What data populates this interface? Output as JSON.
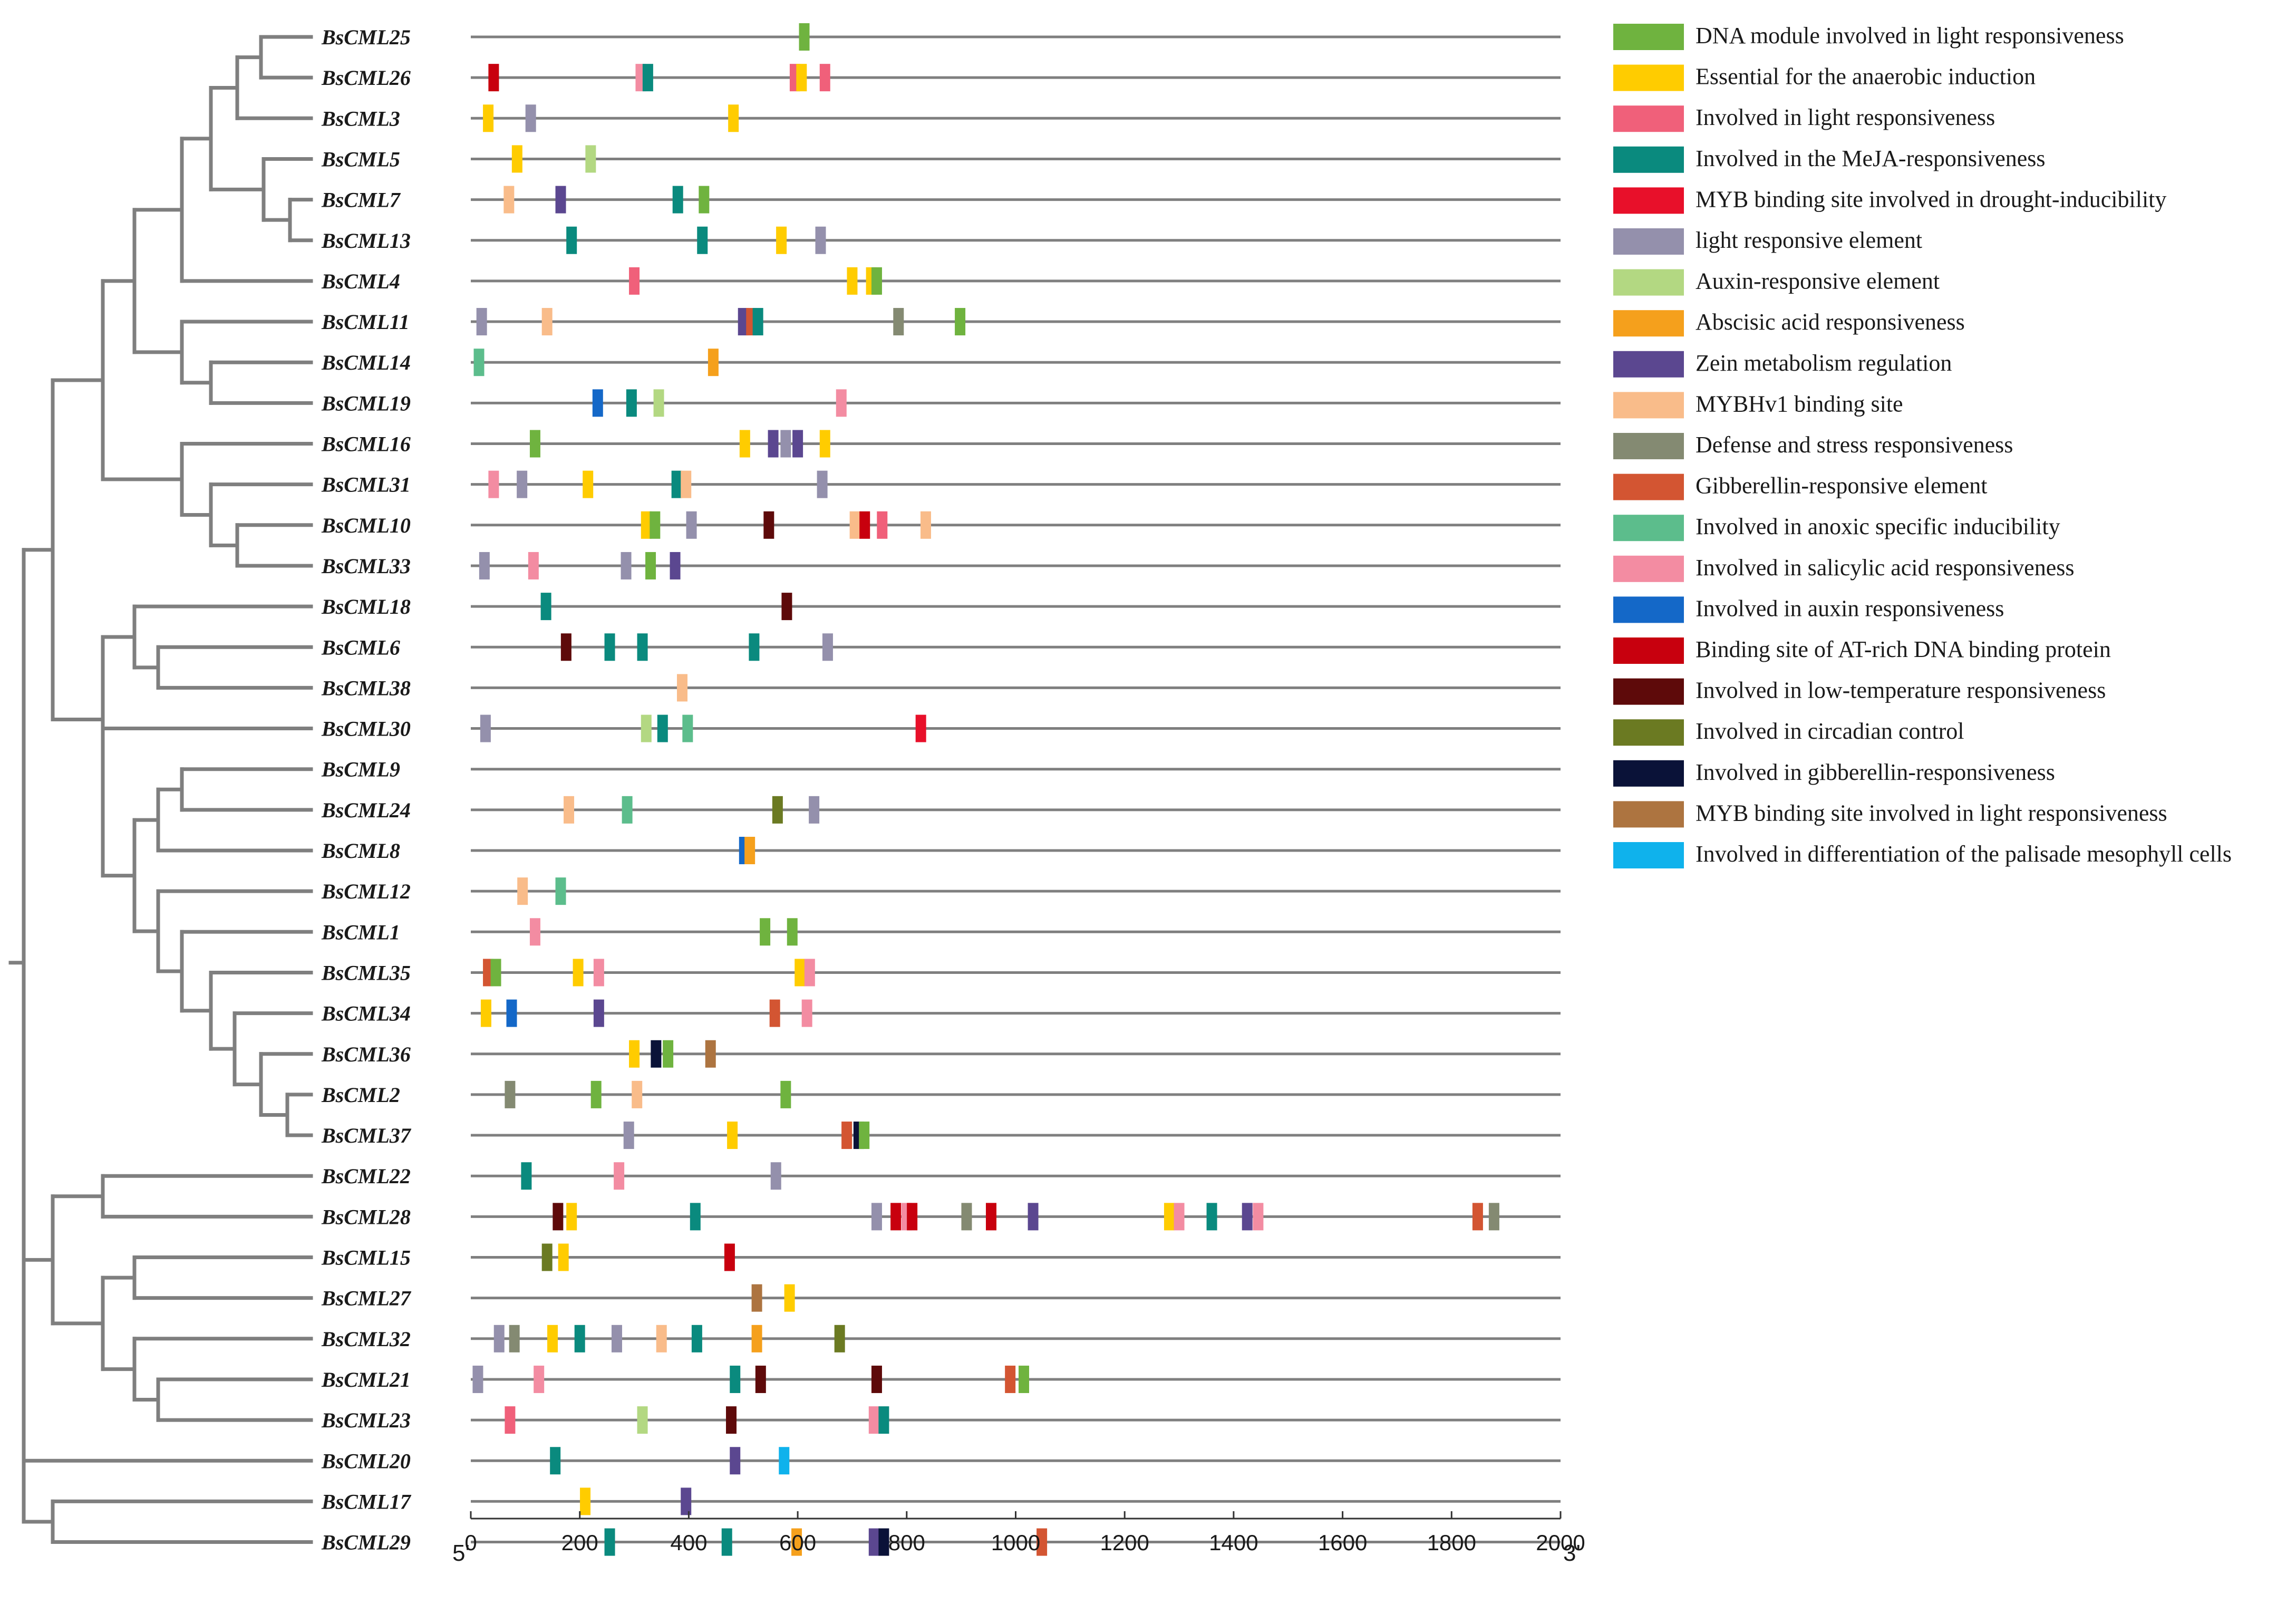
{
  "figure": {
    "five_prime_label": "5'",
    "three_prime_label": "3'",
    "axis": {
      "min": 0,
      "max": 2000,
      "ticks": [
        0,
        200,
        400,
        600,
        800,
        1000,
        1200,
        1400,
        1600,
        1800,
        2000
      ]
    }
  },
  "genes": [
    "BsCML25",
    "BsCML26",
    "BsCML3",
    "BsCML5",
    "BsCML7",
    "BsCML13",
    "BsCML4",
    "BsCML11",
    "BsCML14",
    "BsCML19",
    "BsCML16",
    "BsCML31",
    "BsCML10",
    "BsCML33",
    "BsCML18",
    "BsCML6",
    "BsCML38",
    "BsCML30",
    "BsCML9",
    "BsCML24",
    "BsCML8",
    "BsCML12",
    "BsCML1",
    "BsCML35",
    "BsCML34",
    "BsCML36",
    "BsCML2",
    "BsCML37",
    "BsCML22",
    "BsCML28",
    "BsCML15",
    "BsCML27",
    "BsCML32",
    "BsCML21",
    "BsCML23",
    "BsCML20",
    "BsCML17",
    "BsCML29"
  ],
  "legend": [
    {
      "label": "DNA module involved in light responsiveness",
      "color": "#6fb33f"
    },
    {
      "label": "Essential for the anaerobic induction",
      "color": "#ffcc00"
    },
    {
      "label": "Involved in light responsiveness",
      "color": "#f0607a"
    },
    {
      "label": "Involved in the MeJA-responsiveness",
      "color": "#0a8a7e"
    },
    {
      "label": "MYB binding site involved in drought-inducibility",
      "color": "#e8102a"
    },
    {
      "label": "light responsive element",
      "color": "#9490ac"
    },
    {
      "label": "Auxin-responsive element",
      "color": "#b3d882"
    },
    {
      "label": "Abscisic acid responsiveness",
      "color": "#f5a01c"
    },
    {
      "label": "Zein metabolism regulation",
      "color": "#5b4790"
    },
    {
      "label": "MYBHv1 binding site",
      "color": "#f9bc8a"
    },
    {
      "label": "Defense and stress responsiveness",
      "color": "#848a72"
    },
    {
      "label": "Gibberellin-responsive element",
      "color": "#d35532"
    },
    {
      "label": "Involved in anoxic specific inducibility",
      "color": "#5cbd8c"
    },
    {
      "label": "Involved in salicylic acid responsiveness",
      "color": "#f38ca2"
    },
    {
      "label": "Involved in auxin responsiveness",
      "color": "#1468c8"
    },
    {
      "label": "Binding site of AT-rich DNA binding protein",
      "color": "#c8000e"
    },
    {
      "label": "Involved in low-temperature responsiveness",
      "color": "#5e0a0a"
    },
    {
      "label": "Involved in circadian control",
      "color": "#6b7a22"
    },
    {
      "label": "Involved in gibberellin-responsiveness",
      "color": "#0a1238"
    },
    {
      "label": "MYB binding site involved in light responsiveness",
      "color": "#ad7440"
    },
    {
      "label": "Involved in differentiation of the palisade mesophyll cells",
      "color": "#0fb2ec"
    }
  ],
  "chart_data": {
    "type": "cis-element map with phylogenetic tree",
    "x_range": [
      0,
      2000
    ],
    "xlabel_left": "5'",
    "xlabel_right": "3'",
    "element_index_note": "each element is [position_bp, legend_index]",
    "elements": {
      "BsCML25": [
        [
          612,
          0
        ]
      ],
      "BsCML26": [
        [
          42,
          15
        ],
        [
          312,
          13
        ],
        [
          325,
          3
        ],
        [
          595,
          2
        ],
        [
          607,
          1
        ],
        [
          650,
          2
        ]
      ],
      "BsCML3": [
        [
          32,
          1
        ],
        [
          110,
          5
        ],
        [
          482,
          1
        ]
      ],
      "BsCML5": [
        [
          85,
          1
        ],
        [
          220,
          6
        ]
      ],
      "BsCML7": [
        [
          70,
          9
        ],
        [
          165,
          8
        ],
        [
          380,
          3
        ],
        [
          428,
          0
        ]
      ],
      "BsCML13": [
        [
          185,
          3
        ],
        [
          425,
          3
        ],
        [
          570,
          1
        ],
        [
          642,
          5
        ]
      ],
      "BsCML4": [
        [
          300,
          2
        ],
        [
          700,
          1
        ],
        [
          735,
          1
        ],
        [
          745,
          0
        ]
      ],
      "BsCML11": [
        [
          20,
          5
        ],
        [
          140,
          9
        ],
        [
          500,
          8
        ],
        [
          515,
          11
        ],
        [
          527,
          3
        ],
        [
          785,
          10
        ],
        [
          898,
          0
        ]
      ],
      "BsCML14": [
        [
          15,
          12
        ],
        [
          445,
          7
        ]
      ],
      "BsCML19": [
        [
          233,
          14
        ],
        [
          295,
          3
        ],
        [
          345,
          6
        ],
        [
          680,
          13
        ]
      ],
      "BsCML16": [
        [
          118,
          0
        ],
        [
          503,
          1
        ],
        [
          555,
          8
        ],
        [
          578,
          5
        ],
        [
          600,
          8
        ],
        [
          650,
          1
        ]
      ],
      "BsCML31": [
        [
          42,
          13
        ],
        [
          94,
          5
        ],
        [
          215,
          1
        ],
        [
          378,
          3
        ],
        [
          395,
          9
        ],
        [
          645,
          5
        ]
      ],
      "BsCML10": [
        [
          322,
          1
        ],
        [
          338,
          0
        ],
        [
          405,
          5
        ],
        [
          547,
          16
        ],
        [
          705,
          9
        ],
        [
          723,
          15
        ],
        [
          755,
          2
        ],
        [
          835,
          9
        ]
      ],
      "BsCML33": [
        [
          25,
          5
        ],
        [
          115,
          13
        ],
        [
          285,
          5
        ],
        [
          330,
          0
        ],
        [
          375,
          8
        ]
      ],
      "BsCML18": [
        [
          138,
          3
        ],
        [
          580,
          16
        ]
      ],
      "BsCML6": [
        [
          175,
          16
        ],
        [
          255,
          3
        ],
        [
          315,
          3
        ],
        [
          520,
          3
        ],
        [
          655,
          5
        ]
      ],
      "BsCML38": [
        [
          388,
          9
        ]
      ],
      "BsCML30": [
        [
          27,
          5
        ],
        [
          322,
          6
        ],
        [
          352,
          3
        ],
        [
          398,
          12
        ],
        [
          826,
          4
        ]
      ],
      "BsCML9": [],
      "BsCML24": [
        [
          180,
          9
        ],
        [
          287,
          12
        ],
        [
          563,
          17
        ],
        [
          630,
          5
        ]
      ],
      "BsCML8": [
        [
          502,
          14
        ],
        [
          512,
          7
        ]
      ],
      "BsCML12": [
        [
          95,
          9
        ],
        [
          165,
          12
        ]
      ],
      "BsCML1": [
        [
          118,
          13
        ],
        [
          540,
          0
        ],
        [
          590,
          0
        ]
      ],
      "BsCML35": [
        [
          32,
          11
        ],
        [
          46,
          0
        ],
        [
          197,
          1
        ],
        [
          235,
          13
        ],
        [
          604,
          1
        ],
        [
          622,
          13
        ]
      ],
      "BsCML34": [
        [
          28,
          1
        ],
        [
          75,
          14
        ],
        [
          235,
          8
        ],
        [
          558,
          11
        ],
        [
          617,
          13
        ]
      ],
      "BsCML36": [
        [
          300,
          1
        ],
        [
          340,
          18
        ],
        [
          362,
          0
        ],
        [
          440,
          19
        ]
      ],
      "BsCML2": [
        [
          72,
          10
        ],
        [
          230,
          0
        ],
        [
          305,
          9
        ],
        [
          578,
          0
        ]
      ],
      "BsCML37": [
        [
          290,
          5
        ],
        [
          480,
          1
        ],
        [
          690,
          11
        ],
        [
          712,
          18
        ],
        [
          722,
          0
        ]
      ],
      "BsCML22": [
        [
          102,
          3
        ],
        [
          272,
          13
        ],
        [
          560,
          5
        ]
      ],
      "BsCML28": [
        [
          160,
          16
        ],
        [
          185,
          1
        ],
        [
          412,
          3
        ],
        [
          745,
          5
        ],
        [
          780,
          15
        ],
        [
          800,
          13
        ],
        [
          810,
          15
        ],
        [
          910,
          10
        ],
        [
          955,
          15
        ],
        [
          1032,
          8
        ],
        [
          1282,
          1
        ],
        [
          1300,
          13
        ],
        [
          1360,
          3
        ],
        [
          1425,
          8
        ],
        [
          1445,
          13
        ],
        [
          1848,
          11
        ],
        [
          1878,
          10
        ]
      ],
      "BsCML15": [
        [
          140,
          17
        ],
        [
          170,
          1
        ],
        [
          475,
          15
        ]
      ],
      "BsCML27": [
        [
          525,
          19
        ],
        [
          585,
          1
        ]
      ],
      "BsCML32": [
        [
          52,
          5
        ],
        [
          80,
          10
        ],
        [
          150,
          1
        ],
        [
          200,
          3
        ],
        [
          268,
          5
        ],
        [
          350,
          9
        ],
        [
          415,
          3
        ],
        [
          525,
          7
        ],
        [
          677,
          17
        ]
      ],
      "BsCML21": [
        [
          13,
          5
        ],
        [
          125,
          13
        ],
        [
          485,
          3
        ],
        [
          532,
          16
        ],
        [
          745,
          16
        ],
        [
          990,
          11
        ],
        [
          1015,
          0
        ]
      ],
      "BsCML23": [
        [
          72,
          2
        ],
        [
          315,
          6
        ],
        [
          478,
          16
        ],
        [
          740,
          13
        ],
        [
          758,
          3
        ]
      ],
      "BsCML20": [
        [
          155,
          3
        ],
        [
          485,
          8
        ],
        [
          575,
          20
        ]
      ],
      "BsCML17": [
        [
          210,
          1
        ],
        [
          395,
          8
        ]
      ],
      "BsCML29": [
        [
          255,
          3
        ],
        [
          470,
          3
        ],
        [
          598,
          7
        ],
        [
          740,
          8
        ],
        [
          758,
          18
        ],
        [
          1048,
          11
        ]
      ]
    }
  }
}
